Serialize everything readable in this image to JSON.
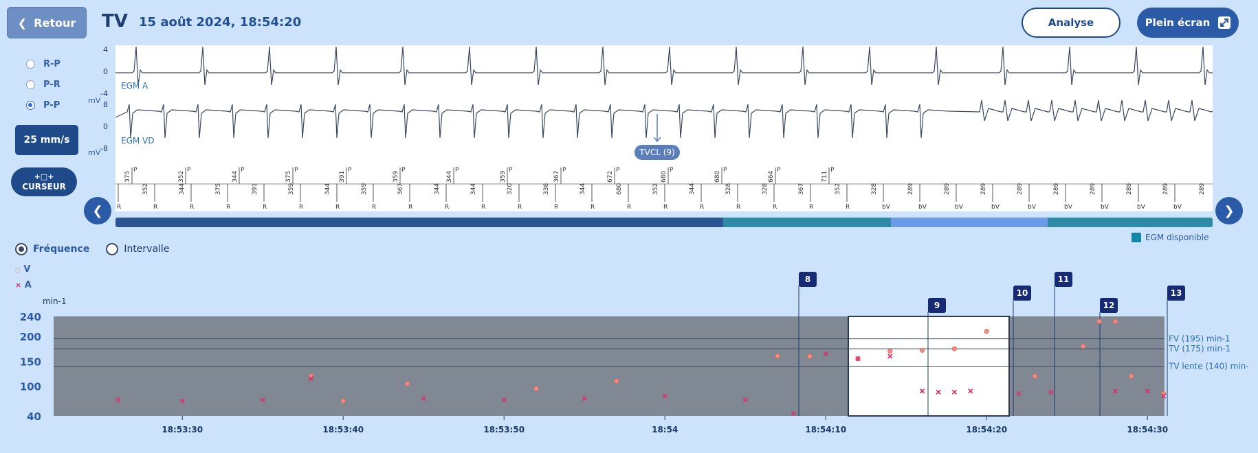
{
  "header": {
    "back_label": "Retour",
    "title": "TV",
    "datetime": "15 août 2024, 18:54:20",
    "analyse_label": "Analyse",
    "fullscreen_label": "Plein écran"
  },
  "left_panel": {
    "interval_options": [
      {
        "label": "R-P",
        "selected": false
      },
      {
        "label": "P-R",
        "selected": false
      },
      {
        "label": "P-P",
        "selected": true
      }
    ],
    "speed_label": "25 mm/s",
    "cursor_label": "CURSEUR"
  },
  "egm": {
    "channels": [
      {
        "name": "EGM A",
        "ticks": [
          "4",
          "0",
          "-4"
        ],
        "unit": "mV"
      },
      {
        "name": "EGM VD",
        "ticks": [
          "8",
          "0",
          "-8"
        ],
        "unit": "mV"
      }
    ],
    "marker_label": "TVCL (9)",
    "top_intervals": [
      "375",
      "352",
      "344",
      "375",
      "391",
      "359",
      "344",
      "359",
      "367",
      "672",
      "680",
      "680",
      "664",
      "711"
    ],
    "bottom_intervals": [
      "352",
      "344",
      "375",
      "391",
      "359",
      "344",
      "359",
      "367",
      "344",
      "344",
      "320",
      "336",
      "344",
      "680",
      "352",
      "344",
      "328",
      "328",
      "367",
      "352",
      "328",
      "289",
      "289",
      "289",
      "289",
      "289",
      "289",
      "289",
      "289",
      "289"
    ],
    "marker_letters": [
      "R",
      "P",
      "bV"
    ]
  },
  "timeline_legend": "EGM disponible",
  "trend": {
    "modes": [
      {
        "label": "Fréquence",
        "selected": true
      },
      {
        "label": "Intervalle",
        "selected": false
      }
    ],
    "legend_v": "V",
    "legend_a": "A",
    "unit": "min-1",
    "zones": [
      {
        "label": "FV (195) min-1",
        "value": 195
      },
      {
        "label": "TV (175) min-1",
        "value": 175
      },
      {
        "label": "TV lente (140) min-",
        "value": 140
      }
    ],
    "y_ticks": [
      "240",
      "200",
      "150",
      "100",
      "40"
    ],
    "x_ticks": [
      "18:53:30",
      "18:53:40",
      "18:53:50",
      "18:54",
      "18:54:10",
      "18:54:20",
      "18:54:30"
    ],
    "episode_markers": [
      "8",
      "9",
      "10",
      "11",
      "12",
      "13"
    ],
    "colors": {
      "v": "#f28b82",
      "a": "#d6336c",
      "plot_bg": "#808894",
      "selection": "#ffffff"
    }
  },
  "chart_data": {
    "type": "scatter",
    "xlabel": "",
    "ylabel": "min-1",
    "ylim": [
      40,
      240
    ],
    "series": [
      {
        "name": "V",
        "x": [
          "18:53:38",
          "18:53:40",
          "18:53:44",
          "18:53:52",
          "18:53:57",
          "18:54:07",
          "18:54:09",
          "18:54:12",
          "18:54:14",
          "18:54:16",
          "18:54:18",
          "18:54:20",
          "18:54:23",
          "18:54:26",
          "18:54:27",
          "18:54:28",
          "18:54:29",
          "18:54:31"
        ],
        "values": [
          120,
          70,
          105,
          95,
          110,
          160,
          160,
          155,
          170,
          172,
          175,
          210,
          120,
          180,
          230,
          230,
          120,
          85
        ]
      },
      {
        "name": "A",
        "x": [
          "18:53:26",
          "18:53:30",
          "18:53:35",
          "18:53:38",
          "18:53:45",
          "18:53:50",
          "18:53:55",
          "18:54",
          "18:54:05",
          "18:54:08",
          "18:54:10",
          "18:54:12",
          "18:54:14",
          "18:54:16",
          "18:54:17",
          "18:54:18",
          "18:54:19",
          "18:54:22",
          "18:54:24",
          "18:54:28",
          "18:54:30",
          "18:54:31"
        ],
        "values": [
          72,
          70,
          72,
          115,
          75,
          72,
          75,
          80,
          72,
          45,
          165,
          155,
          160,
          90,
          88,
          88,
          90,
          85,
          88,
          90,
          90,
          80
        ]
      }
    ]
  }
}
